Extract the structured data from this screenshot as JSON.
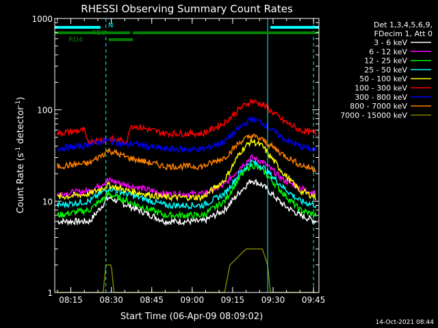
{
  "chart_data": {
    "type": "line",
    "title": "RHESSI Observing Summary Count Rates",
    "xlabel": "Start Time (06-Apr-09 08:09:02)",
    "ylabel_parts": [
      "Count Rate (s",
      "-1",
      " detector",
      "-1",
      ")"
    ],
    "yscale": "log",
    "ylim": [
      1,
      1000
    ],
    "xlim": [
      "08:09:02",
      "09:47:00"
    ],
    "x_ticks": [
      "08:15",
      "08:30",
      "08:45",
      "09:00",
      "09:15",
      "09:30",
      "09:45"
    ],
    "y_ticks": [
      "1",
      "10",
      "100",
      "1000"
    ],
    "legend_header": [
      "Det 1,3,4,5,6,9,",
      "FDecim 1, Att 0"
    ],
    "legend_position": "right",
    "timestamp": "14-Oct-2021 08:44",
    "series": [
      {
        "name": "3 - 6 keV",
        "color": "#ffffff",
        "x": [
          "08:10",
          "08:22",
          "08:29",
          "08:36",
          "08:50",
          "09:04",
          "09:12",
          "09:18",
          "09:22",
          "09:26",
          "09:34",
          "09:40",
          "09:46"
        ],
        "y": [
          6,
          6,
          11,
          9,
          6,
          6,
          8,
          13,
          17,
          15,
          9,
          7,
          6
        ]
      },
      {
        "name": "6 - 12 keV",
        "color": "#ff00ff",
        "x": [
          "08:10",
          "08:22",
          "08:29",
          "08:36",
          "08:50",
          "09:04",
          "09:12",
          "09:18",
          "09:22",
          "09:26",
          "09:34",
          "09:40",
          "09:46"
        ],
        "y": [
          12,
          13,
          17,
          15,
          12,
          12,
          15,
          24,
          30,
          27,
          17,
          14,
          12
        ]
      },
      {
        "name": "12 - 25 keV",
        "color": "#00ff00",
        "x": [
          "08:10",
          "08:22",
          "08:29",
          "08:36",
          "08:50",
          "09:04",
          "09:12",
          "09:18",
          "09:22",
          "09:26",
          "09:34",
          "09:40",
          "09:46"
        ],
        "y": [
          7,
          8,
          12,
          10,
          7,
          7,
          10,
          19,
          25,
          22,
          12,
          8,
          7
        ]
      },
      {
        "name": "25 - 50 keV",
        "color": "#00ffff",
        "x": [
          "08:10",
          "08:22",
          "08:29",
          "08:36",
          "08:50",
          "09:04",
          "09:12",
          "09:18",
          "09:22",
          "09:26",
          "09:34",
          "09:40",
          "09:46"
        ],
        "y": [
          9,
          10,
          14,
          12,
          9,
          9,
          12,
          21,
          27,
          24,
          14,
          10,
          9
        ]
      },
      {
        "name": "50 - 100 keV",
        "color": "#ffff00",
        "x": [
          "08:10",
          "08:22",
          "08:29",
          "08:36",
          "08:50",
          "09:04",
          "09:12",
          "09:18",
          "09:22",
          "09:26",
          "09:34",
          "09:40",
          "09:46"
        ],
        "y": [
          11,
          12,
          15,
          13,
          11,
          11,
          17,
          35,
          46,
          40,
          20,
          13,
          11
        ]
      },
      {
        "name": "100 - 300 keV",
        "color": "#ff0000",
        "x": [
          "08:10",
          "08:20",
          "08:21",
          "08:29",
          "08:36",
          "08:37",
          "08:50",
          "09:04",
          "09:12",
          "09:18",
          "09:22",
          "09:26",
          "09:34",
          "09:40",
          "09:46"
        ],
        "y": [
          55,
          60,
          45,
          48,
          45,
          68,
          55,
          55,
          72,
          105,
          125,
          115,
          75,
          60,
          55
        ]
      },
      {
        "name": "300 - 800 keV",
        "color": "#0000ff",
        "x": [
          "08:10",
          "08:20",
          "08:21",
          "08:29",
          "08:36",
          "08:37",
          "08:50",
          "09:04",
          "09:12",
          "09:18",
          "09:22",
          "09:26",
          "09:34",
          "09:40",
          "09:46"
        ],
        "y": [
          38,
          40,
          42,
          46,
          41,
          43,
          37,
          37,
          45,
          65,
          80,
          72,
          48,
          40,
          36
        ]
      },
      {
        "name": "800 - 7000 keV",
        "color": "#ff8000",
        "x": [
          "08:10",
          "08:22",
          "08:29",
          "08:36",
          "08:50",
          "09:04",
          "09:12",
          "09:18",
          "09:22",
          "09:26",
          "09:34",
          "09:40",
          "09:46"
        ],
        "y": [
          24,
          26,
          36,
          30,
          24,
          24,
          30,
          45,
          52,
          47,
          32,
          25,
          22
        ]
      },
      {
        "name": "7000 - 15000 keV",
        "color": "#808000",
        "x": [
          "08:10",
          "08:27",
          "08:28",
          "08:30",
          "08:31",
          "09:12",
          "09:14",
          "09:20",
          "09:26",
          "09:28",
          "09:29",
          "09:46"
        ],
        "y": [
          1,
          1,
          2,
          2,
          1,
          1,
          2,
          3,
          3,
          2,
          1,
          1
        ]
      }
    ],
    "state_bars": [
      {
        "name": "N",
        "color": "#00ffff",
        "segments": [
          [
            "08:09:02",
            "08:26"
          ],
          [
            "09:29",
            "09:47"
          ]
        ]
      },
      {
        "name": "RD0",
        "color": "#008000",
        "segments": [
          [
            "08:09:02",
            "08:37"
          ],
          [
            "08:38",
            "09:47"
          ]
        ]
      },
      {
        "name": "RD4",
        "color": "#008000",
        "segments": [
          [
            "08:29",
            "08:38"
          ]
        ]
      }
    ],
    "vertical_lines": [
      {
        "time": "08:09:02",
        "style": "solid",
        "color": "#00ffff"
      },
      {
        "time": "08:28",
        "style": "dashed",
        "color": "#00ffff"
      },
      {
        "time": "09:28",
        "style": "solid",
        "color": "#00ffff"
      },
      {
        "time": "09:45",
        "style": "dashed",
        "color": "#00ffff"
      }
    ]
  }
}
